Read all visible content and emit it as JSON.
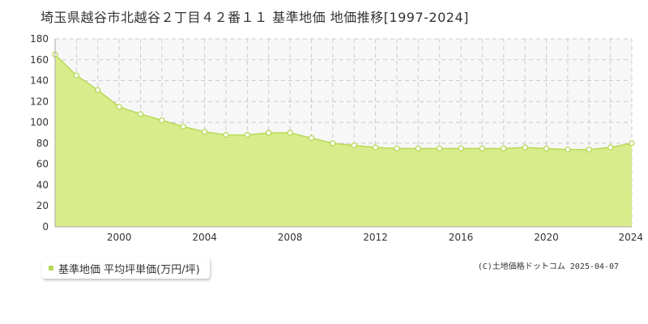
{
  "title": "埼玉県越谷市北越谷２丁目４２番１１ 基準地価 地価推移[1997-2024]",
  "legend": {
    "label": "基準地価 平均坪単価(万円/坪)"
  },
  "copyright": "(C)土地価格ドットコム 2025-04-07",
  "colors": {
    "area_fill": "#d8ec8c",
    "line": "#b6d955",
    "marker_fill": "#ffffff",
    "marker_stroke": "#b6d955",
    "plot_bg": "#f7f7f7",
    "grid": "#cccccc"
  },
  "chart_data": {
    "type": "area",
    "title": "埼玉県越谷市北越谷２丁目４２番１１ 基準地価 地価推移[1997-2024]",
    "xlabel": "",
    "ylabel": "",
    "x": [
      1997,
      1998,
      1999,
      2000,
      2001,
      2002,
      2003,
      2004,
      2005,
      2006,
      2007,
      2008,
      2009,
      2010,
      2011,
      2012,
      2013,
      2014,
      2015,
      2016,
      2017,
      2018,
      2019,
      2020,
      2021,
      2022,
      2023,
      2024
    ],
    "series": [
      {
        "name": "基準地価 平均坪単価(万円/坪)",
        "values": [
          165,
          145,
          131,
          115,
          108,
          102,
          96,
          91,
          88,
          88,
          90,
          90,
          85,
          80,
          78,
          76,
          75,
          75,
          75,
          75,
          75,
          75,
          76,
          75,
          74,
          74,
          76,
          80
        ]
      }
    ],
    "xlim": [
      1997,
      2024
    ],
    "ylim": [
      0,
      180
    ],
    "x_ticks": [
      2000,
      2004,
      2008,
      2012,
      2016,
      2020,
      2024
    ],
    "y_ticks": [
      0,
      20,
      40,
      60,
      80,
      100,
      120,
      140,
      160,
      180
    ],
    "grid": true,
    "legend_position": "bottom-left"
  }
}
